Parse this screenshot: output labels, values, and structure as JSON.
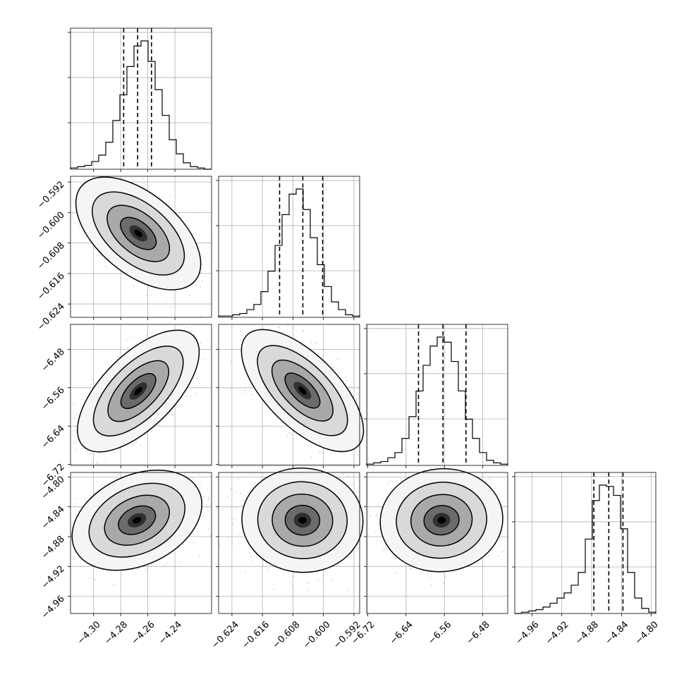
{
  "chart_data": {
    "type": "corner",
    "grid": true,
    "parameters": [
      {
        "index": 0,
        "range": [
          -4.317,
          -4.213
        ],
        "ticks": [
          "-4.30",
          "-4.28",
          "-4.26",
          "-4.24"
        ],
        "quantiles": [
          -4.2778,
          -4.2675,
          -4.2573
        ],
        "hist": [
          1,
          2,
          3,
          6,
          11,
          21,
          38,
          58,
          80,
          96,
          100,
          84,
          62,
          42,
          23,
          12,
          5,
          2,
          1,
          0
        ]
      },
      {
        "index": 1,
        "range": [
          -0.6275,
          -0.5905
        ],
        "ticks": [
          "-0.624",
          "-0.616",
          "-0.608",
          "-0.600",
          "-0.592"
        ],
        "quantiles": [
          -0.6115,
          -0.6054,
          -0.6002
        ],
        "hist": [
          1,
          1,
          2,
          3,
          6,
          10,
          20,
          36,
          56,
          80,
          96,
          100,
          84,
          62,
          41,
          24,
          12,
          6,
          2,
          1
        ]
      },
      {
        "index": 2,
        "range": [
          -6.722,
          -6.428
        ],
        "ticks": [
          "-6.72",
          "-6.64",
          "-6.56",
          "-6.48"
        ],
        "quantiles": [
          -6.614,
          -6.563,
          -6.515
        ],
        "hist": [
          1,
          2,
          3,
          6,
          10,
          21,
          38,
          58,
          78,
          93,
          100,
          96,
          81,
          58,
          36,
          21,
          10,
          4,
          2,
          1
        ]
      },
      {
        "index": 3,
        "range": [
          -4.983,
          -4.794
        ],
        "ticks": [
          "-4.96",
          "-4.92",
          "-4.88",
          "-4.84",
          "-4.80"
        ],
        "quantiles": [
          -4.877,
          -4.857,
          -4.838
        ],
        "hist": [
          0,
          1,
          2,
          3,
          5,
          8,
          12,
          16,
          22,
          32,
          58,
          88,
          100,
          99,
          92,
          66,
          32,
          12,
          4,
          1
        ]
      }
    ],
    "pairs": [
      {
        "x": 0,
        "y": 1,
        "center": [
          -4.267,
          -0.6055
        ],
        "correlation": -0.55
      },
      {
        "x": 0,
        "y": 2,
        "center": [
          -4.267,
          -6.567
        ],
        "correlation": 0.7
      },
      {
        "x": 1,
        "y": 2,
        "center": [
          -0.6055,
          -6.566
        ],
        "correlation": -0.72
      },
      {
        "x": 0,
        "y": 3,
        "center": [
          -4.268,
          -4.858
        ],
        "correlation": 0.35
      },
      {
        "x": 1,
        "y": 3,
        "center": [
          -0.6055,
          -4.858
        ],
        "correlation": -0.05
      },
      {
        "x": 2,
        "y": 3,
        "center": [
          -6.566,
          -4.858
        ],
        "correlation": 0.08
      }
    ]
  }
}
